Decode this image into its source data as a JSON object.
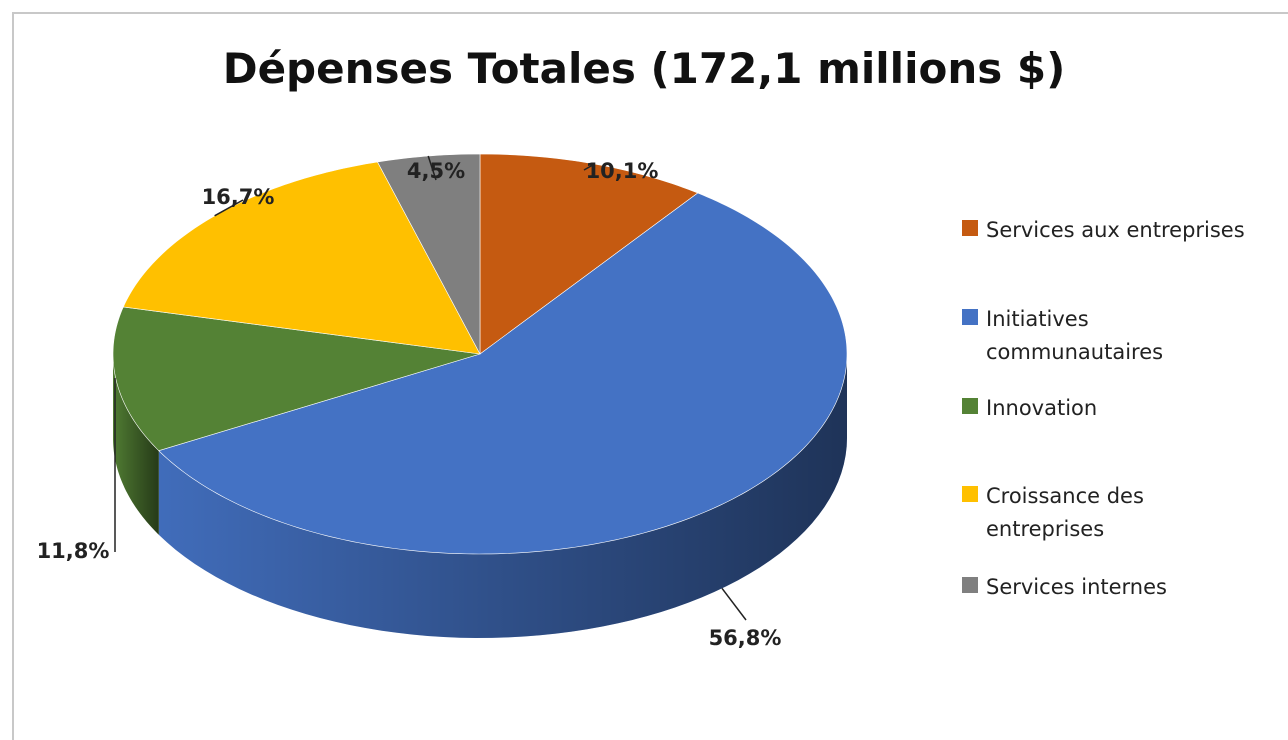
{
  "chart_data": {
    "type": "pie",
    "title": "Dépenses Totales (172,1 millions $)",
    "categories": [
      "Services aux entreprises",
      "Initiatives communautaires",
      "Innovation",
      "Croissance des entreprises",
      "Services internes"
    ],
    "values": [
      10.1,
      56.8,
      11.8,
      16.7,
      4.5
    ],
    "data_labels": [
      "10,1%",
      "56,8%",
      "11,8%",
      "16,7%",
      "4,5%"
    ],
    "colors": [
      "#c55a11",
      "#4472c4",
      "#548235",
      "#ffc000",
      "#7f7f7f"
    ],
    "legend_position": "right",
    "style": "3d-tilted"
  }
}
